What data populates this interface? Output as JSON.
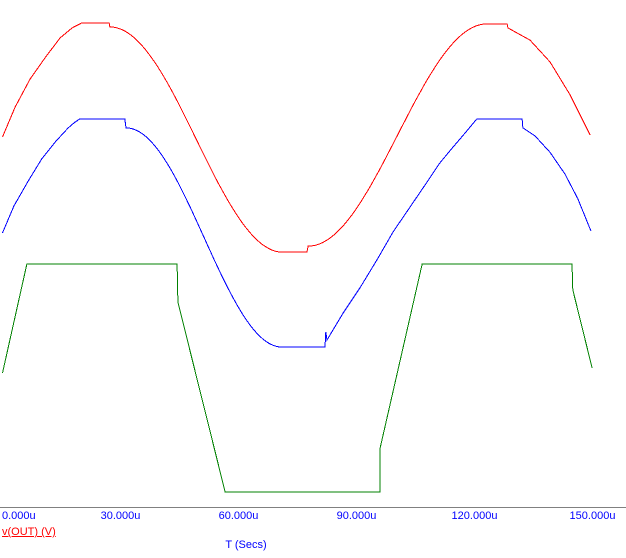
{
  "window": {
    "background": "#ffffff"
  },
  "colors": {
    "axis_line": "#808080",
    "axis_text": "#0000ff",
    "signal_label": "#ff0000"
  },
  "chart_data": {
    "type": "line",
    "title": "",
    "xlabel": "T (Secs)",
    "ylabel": "v(OUT) (V)",
    "x_ticks": [
      "0.000u",
      "30.000u",
      "60.000u",
      "90.000u",
      "120.000u",
      "150.000u"
    ],
    "x_tick_values_us": [
      0,
      30,
      60,
      90,
      120,
      150
    ],
    "xlim_us": [
      0,
      150
    ],
    "ylim": [
      0,
      1
    ],
    "y_axis_note": "No y-axis tick labels visible; v is normalized height above the x-axis (0 = axis line, 1 = top of image).",
    "grid": false,
    "legend": false,
    "series": [
      {
        "id": "red",
        "name": "upper clipped sine (red)",
        "color": "#ff0000",
        "segments": [
          {
            "shape": "line",
            "points": [
              [
                0,
                0.73
              ],
              [
                3.2,
                0.789
              ],
              [
                7.0,
                0.844
              ],
              [
                10.8,
                0.886
              ],
              [
                14.6,
                0.925
              ],
              [
                17.7,
                0.945
              ],
              [
                20.2,
                0.955
              ],
              [
                27.1,
                0.955
              ],
              [
                27.3,
                0.947
              ]
            ]
          },
          {
            "shape": "half_cosine",
            "points": [
              [
                27.3,
                0.947
              ],
              [
                71.3,
                0.503
              ]
            ]
          },
          {
            "shape": "line",
            "points": [
              [
                71.3,
                0.503
              ],
              [
                77.4,
                0.503
              ],
              [
                77.7,
                0.515
              ]
            ]
          },
          {
            "shape": "half_cosine",
            "points": [
              [
                77.7,
                0.515
              ],
              [
                123.2,
                0.953
              ]
            ]
          },
          {
            "shape": "line",
            "points": [
              [
                123.2,
                0.953
              ],
              [
                128.3,
                0.953
              ],
              [
                128.5,
                0.945
              ],
              [
                131.3,
                0.933
              ],
              [
                134.1,
                0.921
              ],
              [
                139.2,
                0.878
              ],
              [
                144.3,
                0.813
              ],
              [
                149.4,
                0.734
              ]
            ]
          }
        ]
      },
      {
        "id": "blue",
        "name": "middle clipped sine (blue)",
        "color": "#0000ff",
        "segments": [
          {
            "shape": "line",
            "points": [
              [
                0,
                0.541
              ],
              [
                2.9,
                0.594
              ],
              [
                6.5,
                0.643
              ],
              [
                10.0,
                0.687
              ],
              [
                13.6,
                0.722
              ],
              [
                16.7,
                0.748
              ],
              [
                18.2,
                0.758
              ],
              [
                19.7,
                0.766
              ],
              [
                31.1,
                0.766
              ],
              [
                31.4,
                0.748
              ]
            ]
          },
          {
            "shape": "half_cosine",
            "points": [
              [
                31.4,
                0.748
              ],
              [
                71.1,
                0.316
              ]
            ]
          },
          {
            "shape": "line",
            "points": [
              [
                71.1,
                0.316
              ],
              [
                82.0,
                0.316
              ],
              [
                82.2,
                0.346
              ],
              [
                82.5,
                0.33
              ],
              [
                86.6,
                0.383
              ],
              [
                90.9,
                0.433
              ],
              [
                95.2,
                0.488
              ],
              [
                99.3,
                0.543
              ],
              [
                103.6,
                0.592
              ],
              [
                107.4,
                0.635
              ],
              [
                111.2,
                0.679
              ],
              [
                114.3,
                0.708
              ],
              [
                117.6,
                0.738
              ],
              [
                119.1,
                0.752
              ],
              [
                120.6,
                0.766
              ],
              [
                132.1,
                0.766
              ],
              [
                132.3,
                0.748
              ],
              [
                135.4,
                0.732
              ],
              [
                139.2,
                0.7
              ],
              [
                143.0,
                0.657
              ],
              [
                146.3,
                0.608
              ],
              [
                149.6,
                0.545
              ]
            ]
          }
        ]
      },
      {
        "id": "green",
        "name": "trapezoidal square wave (green)",
        "color": "#008000",
        "segments": [
          {
            "shape": "line",
            "points": [
              [
                0,
                0.265
              ],
              [
                6.2,
                0.48
              ],
              [
                44.4,
                0.48
              ],
              [
                44.6,
                0.405
              ],
              [
                56.6,
                0.031
              ],
              [
                96.0,
                0.031
              ],
              [
                96.0,
                0.117
              ],
              [
                106.7,
                0.48
              ],
              [
                144.8,
                0.48
              ],
              [
                145.0,
                0.429
              ],
              [
                149.9,
                0.275
              ]
            ]
          }
        ]
      }
    ]
  }
}
